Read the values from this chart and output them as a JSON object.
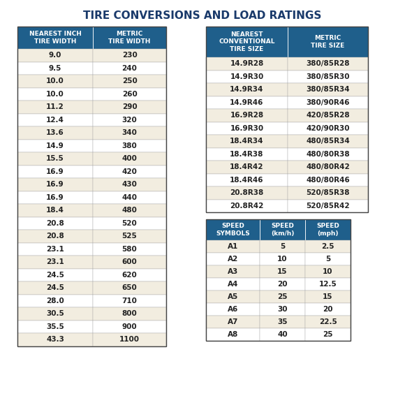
{
  "title": "TIRE CONVERSIONS AND LOAD RATINGS",
  "title_color": "#1a3a6b",
  "header_bg": "#1f5f8b",
  "header_text_color": "#ffffff",
  "row_bg_odd": "#f2ede0",
  "row_bg_even": "#ffffff",
  "text_color": "#222222",
  "border_color": "#aaaaaa",
  "table1_headers": [
    "NEAREST INCH\nTIRE WIDTH",
    "METRIC\nTIRE WIDTH"
  ],
  "table1_rows": [
    [
      "9.0",
      "230"
    ],
    [
      "9.5",
      "240"
    ],
    [
      "10.0",
      "250"
    ],
    [
      "10.0",
      "260"
    ],
    [
      "11.2",
      "290"
    ],
    [
      "12.4",
      "320"
    ],
    [
      "13.6",
      "340"
    ],
    [
      "14.9",
      "380"
    ],
    [
      "15.5",
      "400"
    ],
    [
      "16.9",
      "420"
    ],
    [
      "16.9",
      "430"
    ],
    [
      "16.9",
      "440"
    ],
    [
      "18.4",
      "480"
    ],
    [
      "20.8",
      "520"
    ],
    [
      "20.8",
      "525"
    ],
    [
      "23.1",
      "580"
    ],
    [
      "23.1",
      "600"
    ],
    [
      "24.5",
      "620"
    ],
    [
      "24.5",
      "650"
    ],
    [
      "28.0",
      "710"
    ],
    [
      "30.5",
      "800"
    ],
    [
      "35.5",
      "900"
    ],
    [
      "43.3",
      "1100"
    ]
  ],
  "table2_headers": [
    "NEAREST\nCONVENTIONAL\nTIRE SIZE",
    "METRIC\nTIRE SIZE"
  ],
  "table2_rows": [
    [
      "14.9R28",
      "380/85R28"
    ],
    [
      "14.9R30",
      "380/85R30"
    ],
    [
      "14.9R34",
      "380/85R34"
    ],
    [
      "14.9R46",
      "380/90R46"
    ],
    [
      "16.9R28",
      "420/85R28"
    ],
    [
      "16.9R30",
      "420/90R30"
    ],
    [
      "18.4R34",
      "480/85R34"
    ],
    [
      "18.4R38",
      "480/80R38"
    ],
    [
      "18.4R42",
      "480/80R42"
    ],
    [
      "18.4R46",
      "480/80R46"
    ],
    [
      "20.8R38",
      "520/85R38"
    ],
    [
      "20.8R42",
      "520/85R42"
    ]
  ],
  "table3_headers": [
    "SPEED\nSYMBOLS",
    "SPEED\n(km/h)",
    "SPEED\n(mph)"
  ],
  "table3_rows": [
    [
      "A1",
      "5",
      "2.5"
    ],
    [
      "A2",
      "10",
      "5"
    ],
    [
      "A3",
      "15",
      "10"
    ],
    [
      "A4",
      "20",
      "12.5"
    ],
    [
      "A5",
      "25",
      "15"
    ],
    [
      "A6",
      "30",
      "20"
    ],
    [
      "A7",
      "35",
      "22.5"
    ],
    [
      "A8",
      "40",
      "25"
    ]
  ]
}
